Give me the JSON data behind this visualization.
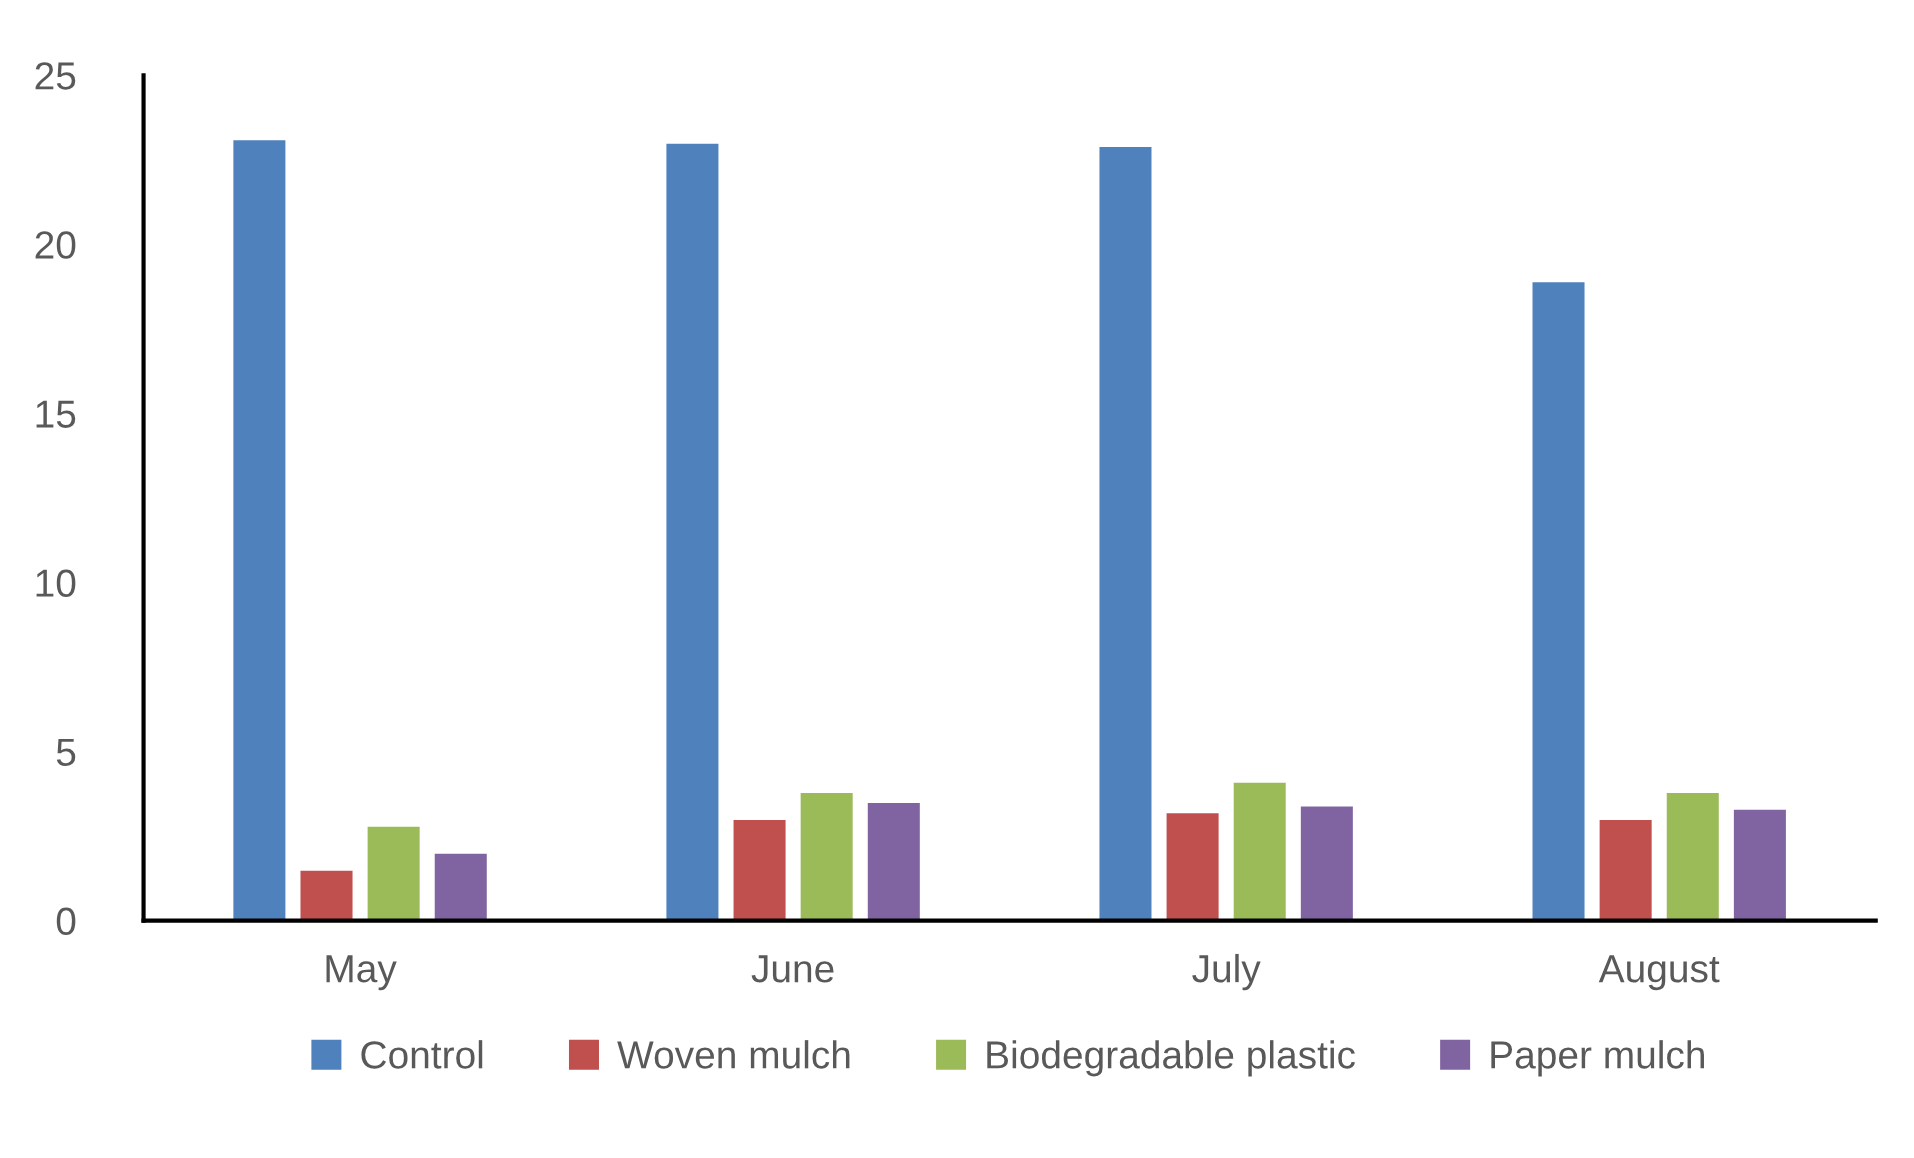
{
  "chart_data": {
    "type": "bar",
    "categories": [
      "May",
      "June",
      "July",
      "August"
    ],
    "series": [
      {
        "name": "Control",
        "color": "#4f81bd",
        "values": [
          23.1,
          23.0,
          22.9,
          18.9
        ]
      },
      {
        "name": "Woven mulch",
        "color": "#c0504d",
        "values": [
          1.5,
          3.0,
          3.2,
          3.0
        ]
      },
      {
        "name": "Biodegradable plastic",
        "color": "#9bbb59",
        "values": [
          2.8,
          3.8,
          4.1,
          3.8
        ]
      },
      {
        "name": "Paper mulch",
        "color": "#8064a2",
        "values": [
          2.0,
          3.5,
          3.4,
          3.3
        ]
      }
    ],
    "ylim": [
      0,
      25
    ],
    "yticks": [
      0,
      5,
      10,
      15,
      20,
      25
    ],
    "grid": false,
    "legend": "bottom"
  }
}
